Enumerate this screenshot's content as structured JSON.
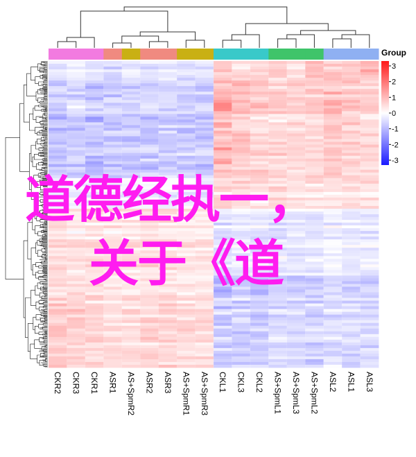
{
  "overlay": {
    "line1": "道德经执一，",
    "line2": "关于《道"
  },
  "chart_data": {
    "type": "heatmap",
    "title": "",
    "xlabel": "",
    "ylabel": "",
    "columns": [
      "CKR2",
      "CKR3",
      "CKR1",
      "ASR1",
      "AS+SpmR2",
      "ASR2",
      "ASR3",
      "AS+SpmR1",
      "AS+SpmR3",
      "CKL1",
      "CKL3",
      "CKL2",
      "AS+SpmL1",
      "AS+SpmL3",
      "AS+SpmL2",
      "ASL2",
      "ASL1",
      "ASL3"
    ],
    "group_legend_title": "Group",
    "groups": [
      "CKR",
      "ASR",
      "AS+SpmR",
      "CKL",
      "AS+SpmL",
      "ASL"
    ],
    "column_groups": [
      "CKR",
      "CKR",
      "CKR",
      "ASR",
      "AS+SpmR",
      "ASR",
      "ASR",
      "AS+SpmR",
      "AS+SpmR",
      "CKL",
      "CKL",
      "CKL",
      "AS+SpmL",
      "AS+SpmL",
      "AS+SpmL",
      "ASL",
      "ASL",
      "ASL"
    ],
    "group_colors": {
      "CKR": "#f27be0",
      "ASR": "#f08a80",
      "AS+SpmR": "#c9b014",
      "CKL": "#39c9c9",
      "AS+SpmL": "#3fc46a",
      "ASL": "#8fb0f2"
    },
    "colorbar": {
      "ticks": [
        3,
        2,
        1,
        0,
        -1,
        -2,
        -3
      ],
      "range": [
        -3,
        3
      ],
      "low_color": "#1a1aff",
      "mid_color": "#ffffff",
      "high_color": "#ff1a1a"
    },
    "blocks": [
      {
        "rows": [
          0.0,
          0.06
        ],
        "values": [
          -0.3,
          -0.2,
          -0.3,
          -0.4,
          -0.3,
          -0.3,
          -0.3,
          -0.4,
          -0.3,
          0.6,
          0.4,
          0.6,
          0.6,
          0.4,
          0.9,
          0.7,
          0.7,
          0.8
        ]
      },
      {
        "rows": [
          0.06,
          0.38
        ],
        "values": [
          -0.7,
          -0.6,
          -0.8,
          -0.7,
          -0.7,
          -0.7,
          -0.6,
          -0.7,
          -0.7,
          1.0,
          0.7,
          0.6,
          0.5,
          0.5,
          0.5,
          0.7,
          0.6,
          0.5
        ]
      },
      {
        "rows": [
          0.38,
          0.48
        ],
        "values": [
          -0.2,
          -0.2,
          -0.2,
          -0.3,
          -0.2,
          -0.2,
          -0.2,
          -0.2,
          -0.3,
          0.5,
          0.4,
          0.3,
          0.4,
          0.3,
          0.3,
          0.3,
          0.4,
          0.3
        ]
      },
      {
        "rows": [
          0.48,
          0.7
        ],
        "values": [
          0.4,
          0.3,
          0.4,
          0.3,
          0.3,
          0.4,
          0.4,
          0.3,
          0.3,
          -0.4,
          -0.3,
          -0.3,
          -0.3,
          -0.3,
          -0.3,
          -0.2,
          -0.3,
          -0.3
        ]
      },
      {
        "rows": [
          0.7,
          1.0
        ],
        "values": [
          0.6,
          0.5,
          0.5,
          0.4,
          0.4,
          0.5,
          0.5,
          0.4,
          0.4,
          -0.7,
          -0.6,
          -0.6,
          -0.5,
          -0.5,
          -0.6,
          -0.4,
          -0.5,
          -0.5
        ]
      }
    ]
  }
}
